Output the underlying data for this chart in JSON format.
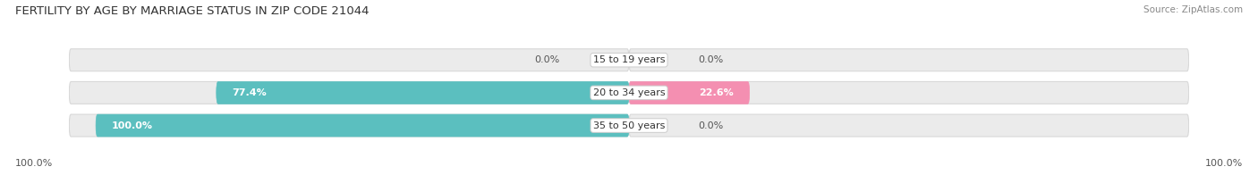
{
  "title": "FERTILITY BY AGE BY MARRIAGE STATUS IN ZIP CODE 21044",
  "source": "Source: ZipAtlas.com",
  "categories": [
    "15 to 19 years",
    "20 to 34 years",
    "35 to 50 years"
  ],
  "married_values": [
    0.0,
    77.4,
    100.0
  ],
  "unmarried_values": [
    0.0,
    22.6,
    0.0
  ],
  "married_color": "#5BBFBF",
  "unmarried_color": "#F48FB1",
  "bar_bg_color": "#EBEBEB",
  "bar_bg_edge": "#D8D8D8",
  "title_fontsize": 9.5,
  "source_fontsize": 7.5,
  "label_fontsize": 8,
  "category_fontsize": 8,
  "tick_fontsize": 8,
  "legend_fontsize": 8.5,
  "left_axis_label": "100.0%",
  "right_axis_label": "100.0%",
  "background_color": "#FFFFFF",
  "bar_height": 0.68,
  "xlim": 105
}
